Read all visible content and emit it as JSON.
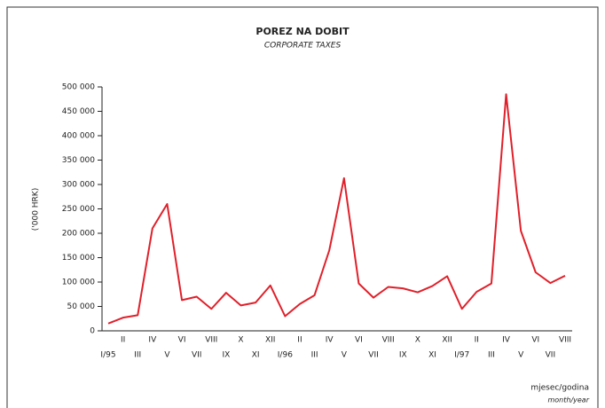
{
  "chart_data": {
    "type": "line",
    "title": "POREZ NA DOBIT",
    "subtitle": "CORPORATE TAXES",
    "y_label": "('000 HRK)",
    "x_label": "mjesec/godina",
    "x_label_sub": "month/year",
    "categories": [
      "I/95",
      "II",
      "III",
      "IV",
      "V",
      "VI",
      "VII",
      "VIII",
      "IX",
      "X",
      "XI",
      "XII",
      "I/96",
      "II",
      "III",
      "IV",
      "V",
      "VI",
      "VII",
      "VIII",
      "IX",
      "X",
      "XI",
      "XII",
      "I/97",
      "II",
      "III",
      "IV",
      "V",
      "VI",
      "VII",
      "VIII"
    ],
    "series": [
      {
        "name": "Corporate taxes",
        "color": "#e0202a",
        "values": [
          15000,
          27000,
          32000,
          210000,
          260000,
          63000,
          70000,
          45000,
          78000,
          52000,
          58000,
          93000,
          30000,
          55000,
          73000,
          165000,
          313000,
          97000,
          68000,
          90000,
          87000,
          79000,
          92000,
          112000,
          45000,
          80000,
          97000,
          485000,
          205000,
          120000,
          98000,
          113000
        ]
      }
    ],
    "ylim": [
      0,
      500000
    ],
    "yticks": [
      0,
      {
        "value": 50000,
        "label": "50 000"
      },
      {
        "value": 100000,
        "label": "100 000"
      },
      {
        "value": 150000,
        "label": "150 000"
      },
      {
        "value": 200000,
        "label": "200 000"
      },
      {
        "value": 250000,
        "label": "250 000"
      },
      {
        "value": 300000,
        "label": "300 000"
      },
      {
        "value": 350000,
        "label": "350 000"
      },
      {
        "value": 400000,
        "label": "400 000"
      },
      {
        "value": 450000,
        "label": "450 000"
      },
      {
        "value": 500000,
        "label": "500 000"
      }
    ],
    "grid": false
  }
}
